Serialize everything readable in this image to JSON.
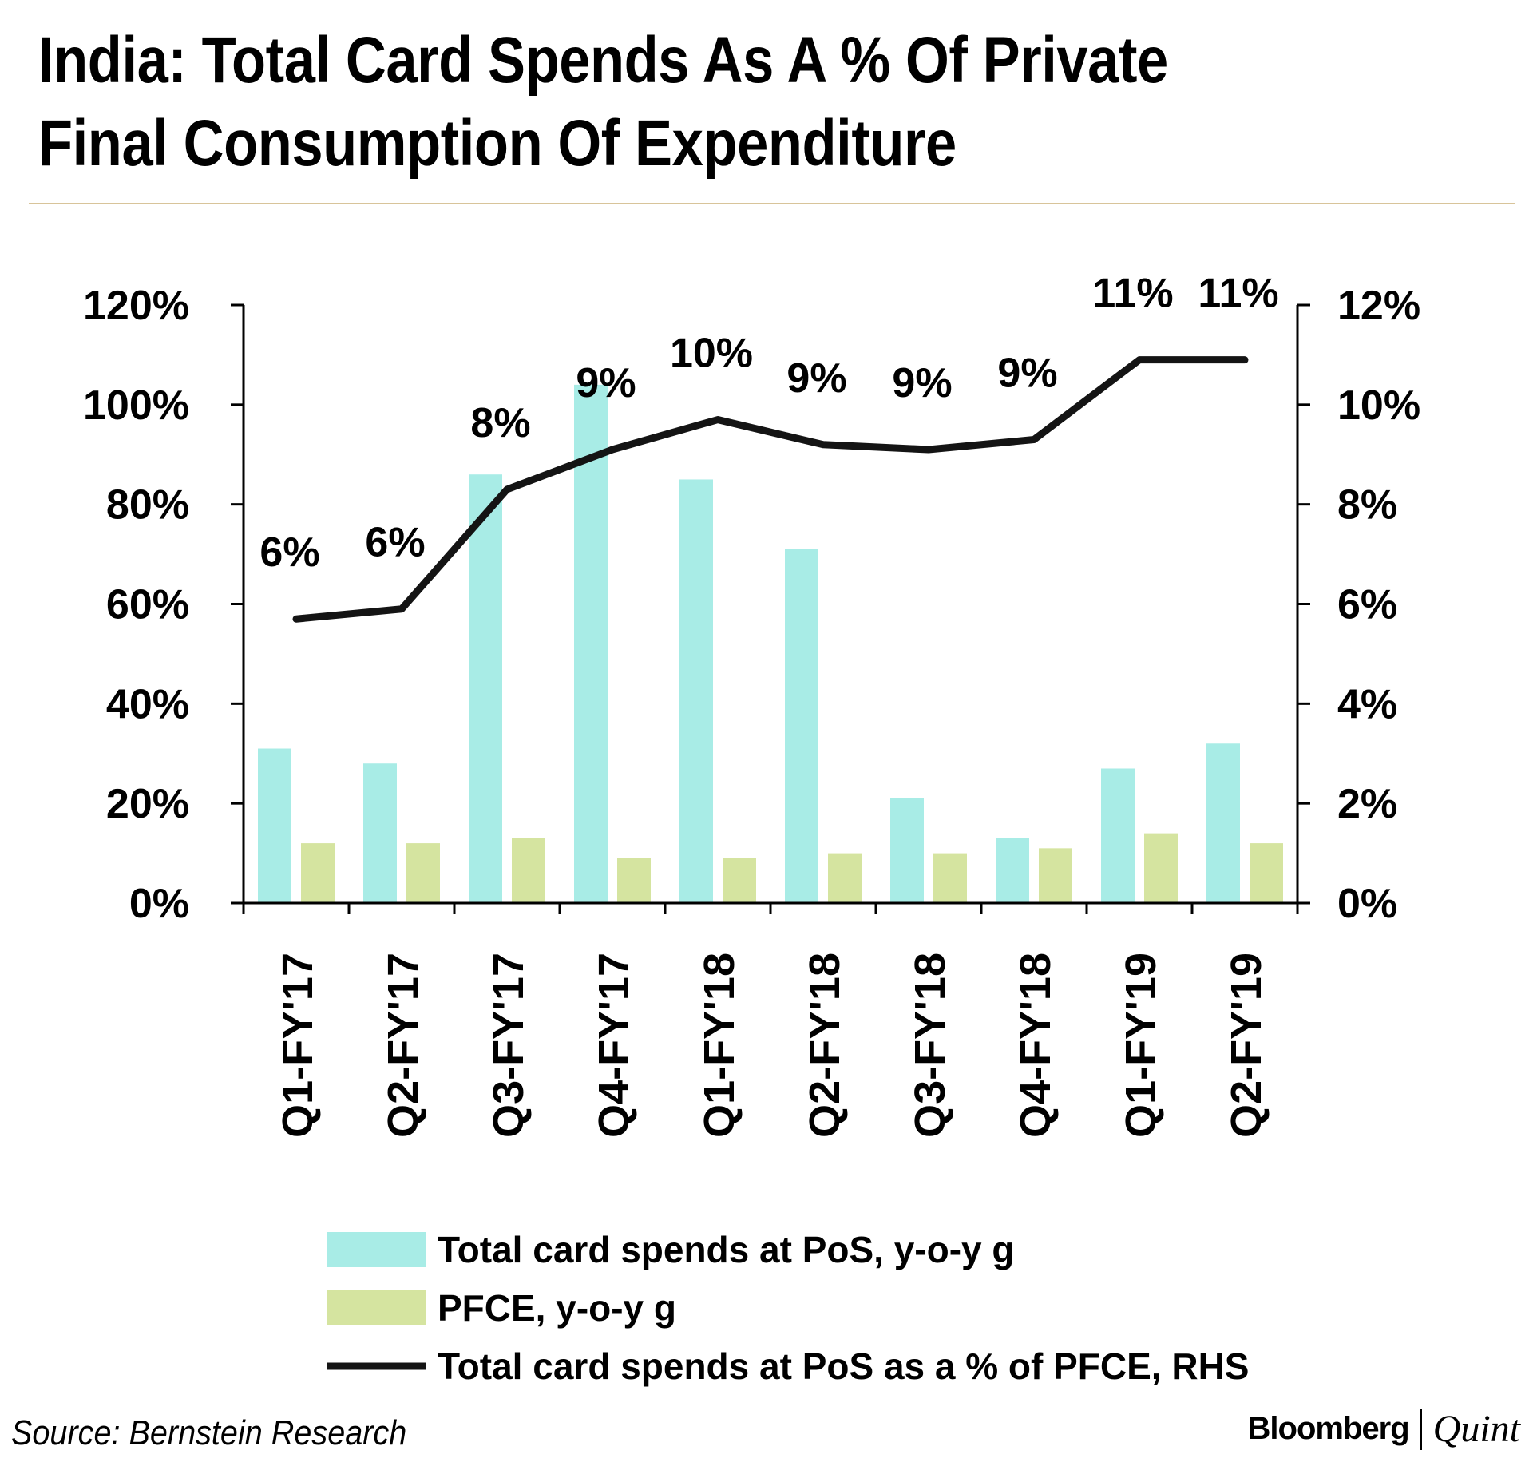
{
  "title": "India: Total Card Spends As A % Of Private Final Consumption Of Expenditure",
  "source": "Source: Bernstein Research",
  "brand": {
    "primary": "Bloomberg",
    "secondary": "Quint"
  },
  "colors": {
    "pos": "#a8ece6",
    "pfce": "#d5e4a0",
    "line": "#141414",
    "rule": "#d8c49a"
  },
  "chart_data": {
    "type": "bar",
    "categories": [
      "Q1-FY'17",
      "Q2-FY'17",
      "Q3-FY'17",
      "Q4-FY'17",
      "Q1-FY'18",
      "Q2-FY'18",
      "Q3-FY'18",
      "Q4-FY'18",
      "Q1-FY'19",
      "Q2-FY'19"
    ],
    "series": [
      {
        "name": "Total card spends at PoS, y-o-y g",
        "type": "bar",
        "axis": "left",
        "values": [
          31,
          28,
          86,
          104,
          85,
          71,
          21,
          13,
          27,
          32
        ]
      },
      {
        "name": "PFCE, y-o-y g",
        "type": "bar",
        "axis": "left",
        "values": [
          12,
          12,
          13,
          9,
          9,
          10,
          10,
          11,
          14,
          12
        ]
      },
      {
        "name": "Total card spends at PoS as a % of PFCE, RHS",
        "type": "line",
        "axis": "right",
        "values": [
          5.7,
          5.9,
          8.3,
          9.1,
          9.7,
          9.2,
          9.1,
          9.3,
          10.9,
          10.9
        ],
        "labels": [
          "6%",
          "6%",
          "8%",
          "9%",
          "10%",
          "9%",
          "9%",
          "9%",
          "11%",
          "11%"
        ]
      }
    ],
    "left_axis": {
      "min": 0,
      "max": 120,
      "step": 20,
      "ticks": [
        "0%",
        "20%",
        "40%",
        "60%",
        "80%",
        "100%",
        "120%"
      ]
    },
    "right_axis": {
      "min": 0,
      "max": 12,
      "step": 2,
      "ticks": [
        "0%",
        "2%",
        "4%",
        "6%",
        "8%",
        "10%",
        "12%"
      ]
    },
    "legend": [
      "Total card spends at PoS, y-o-y g",
      "PFCE, y-o-y g",
      "Total card spends at PoS as a % of PFCE, RHS"
    ],
    "legend_position": "bottom"
  }
}
